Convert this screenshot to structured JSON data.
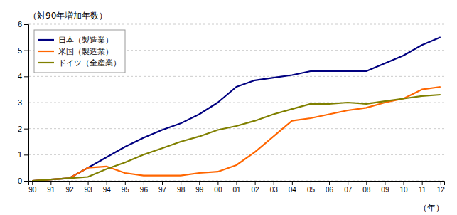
{
  "chart_data": {
    "type": "line",
    "y_label": "（対90年増加年数）",
    "x_label": "（年）",
    "categories": [
      "90",
      "91",
      "92",
      "93",
      "94",
      "95",
      "96",
      "97",
      "98",
      "99",
      "00",
      "01",
      "02",
      "03",
      "04",
      "05",
      "06",
      "07",
      "08",
      "09",
      "10",
      "11",
      "12"
    ],
    "series": [
      {
        "name": "日本（製造業）",
        "color": "#000080",
        "values": [
          0.0,
          0.05,
          0.1,
          0.5,
          0.9,
          1.3,
          1.65,
          1.95,
          2.2,
          2.55,
          3.0,
          3.6,
          3.85,
          3.95,
          4.05,
          4.2,
          4.2,
          4.2,
          4.2,
          4.5,
          4.8,
          5.2,
          5.5
        ]
      },
      {
        "name": "米国（製造業）",
        "color": "#FF6600",
        "values": [
          0.0,
          0.05,
          0.1,
          0.5,
          0.55,
          0.3,
          0.2,
          0.2,
          0.2,
          0.3,
          0.35,
          0.6,
          1.1,
          1.7,
          2.3,
          2.4,
          2.55,
          2.7,
          2.8,
          3.0,
          3.15,
          3.5,
          3.6
        ]
      },
      {
        "name": "ドイツ（全産業）",
        "color": "#808000",
        "values": [
          0.0,
          0.05,
          0.1,
          0.15,
          0.45,
          0.7,
          1.0,
          1.25,
          1.5,
          1.7,
          1.95,
          2.1,
          2.3,
          2.55,
          2.75,
          2.95,
          2.95,
          3.0,
          2.95,
          3.05,
          3.15,
          3.25,
          3.3
        ]
      }
    ],
    "ylim": [
      0,
      6
    ],
    "yticks": [
      0,
      1,
      2,
      3,
      4,
      5,
      6
    ],
    "grid": true,
    "legend": "upper left"
  }
}
